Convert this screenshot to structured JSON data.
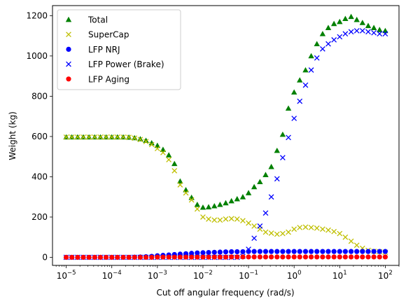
{
  "chart_data": {
    "type": "scatter",
    "title": "",
    "xlabel": "Cut off angular frequency (rad/s)",
    "ylabel": "Weight (kg)",
    "xscale": "log",
    "xlim": [
      5e-06,
      200
    ],
    "ylim": [
      -40,
      1250
    ],
    "x_ticks": [
      {
        "value": 1e-05,
        "base": "10",
        "exp": "−5"
      },
      {
        "value": 0.0001,
        "base": "10",
        "exp": "−4"
      },
      {
        "value": 0.001,
        "base": "10",
        "exp": "−3"
      },
      {
        "value": 0.01,
        "base": "10",
        "exp": "−2"
      },
      {
        "value": 0.1,
        "base": "10",
        "exp": "−1"
      },
      {
        "value": 1,
        "base": "10",
        "exp": "0"
      },
      {
        "value": 10,
        "base": "10",
        "exp": "1"
      },
      {
        "value": 100,
        "base": "10",
        "exp": "2"
      }
    ],
    "y_ticks": [
      0,
      200,
      400,
      600,
      800,
      1000,
      1200
    ],
    "grid": false,
    "legend_position": "top-left",
    "x": [
      1e-05,
      1.33e-05,
      1.78e-05,
      2.37e-05,
      3.16e-05,
      4.22e-05,
      5.62e-05,
      7.5e-05,
      0.0001,
      0.000133,
      0.000178,
      0.000237,
      0.000316,
      0.000422,
      0.000562,
      0.00075,
      0.001,
      0.00133,
      0.00178,
      0.00237,
      0.00316,
      0.00422,
      0.00562,
      0.0075,
      0.01,
      0.0133,
      0.0178,
      0.0237,
      0.0316,
      0.0422,
      0.0562,
      0.075,
      0.1,
      0.133,
      0.178,
      0.237,
      0.316,
      0.422,
      0.562,
      0.75,
      1,
      1.33,
      1.78,
      2.37,
      3.16,
      4.22,
      5.62,
      7.5,
      10,
      13.3,
      17.8,
      23.7,
      31.6,
      42.2,
      56.2,
      75,
      100
    ],
    "series": [
      {
        "name": "Total",
        "color": "#008000",
        "marker": "triangle",
        "values": [
          597,
          597,
          597,
          597,
          597,
          597,
          597,
          597,
          597,
          597,
          597,
          596,
          593,
          588,
          580,
          568,
          555,
          535,
          508,
          465,
          378,
          335,
          297,
          262,
          248,
          250,
          255,
          262,
          270,
          280,
          290,
          300,
          320,
          350,
          375,
          410,
          450,
          530,
          610,
          740,
          820,
          880,
          930,
          1000,
          1060,
          1110,
          1140,
          1160,
          1170,
          1185,
          1195,
          1180,
          1165,
          1150,
          1140,
          1130,
          1125
        ]
      },
      {
        "name": "SuperCap",
        "color": "#bfbf00",
        "marker": "x",
        "values": [
          597,
          597,
          597,
          597,
          597,
          597,
          597,
          597,
          597,
          597,
          597,
          596,
          592,
          585,
          575,
          560,
          540,
          520,
          485,
          430,
          360,
          320,
          285,
          240,
          200,
          190,
          185,
          185,
          190,
          192,
          190,
          182,
          170,
          155,
          140,
          125,
          120,
          115,
          118,
          125,
          140,
          148,
          150,
          148,
          145,
          140,
          135,
          128,
          118,
          100,
          80,
          60,
          45,
          35,
          30,
          28,
          25
        ]
      },
      {
        "name": "LFP NRJ",
        "color": "#0000ff",
        "marker": "circle",
        "values": [
          0,
          0,
          0,
          0,
          0,
          0,
          0,
          0,
          0,
          0,
          0,
          0,
          1,
          2,
          3,
          5,
          8,
          10,
          12,
          14,
          16,
          18,
          20,
          22,
          23,
          24,
          25,
          26,
          27,
          28,
          28,
          28,
          29,
          29,
          29,
          29,
          29,
          29,
          29,
          29,
          29,
          29,
          29,
          29,
          29,
          29,
          29,
          29,
          29,
          29,
          29,
          29,
          29,
          29,
          29,
          29,
          29
        ]
      },
      {
        "name": "LFP Power (Brake)",
        "color": "#0000ff",
        "marker": "x",
        "values": [
          0,
          0,
          0,
          0,
          0,
          0,
          0,
          0,
          0,
          0,
          0,
          0,
          0,
          0,
          0,
          0,
          0,
          0,
          0,
          0,
          0,
          0,
          0,
          0,
          0,
          0,
          0,
          0,
          0,
          0,
          0,
          5,
          40,
          95,
          155,
          220,
          300,
          390,
          495,
          595,
          690,
          775,
          855,
          930,
          990,
          1035,
          1060,
          1080,
          1095,
          1110,
          1120,
          1125,
          1125,
          1120,
          1115,
          1110,
          1110
        ]
      },
      {
        "name": "LFP Aging",
        "color": "#ff0000",
        "marker": "circle",
        "values": [
          0,
          0,
          0,
          0,
          0,
          0,
          0,
          0,
          0,
          0,
          0,
          0,
          0,
          0,
          0,
          0,
          1,
          1,
          1,
          1,
          1,
          1,
          1,
          1,
          1,
          1,
          1,
          1,
          1,
          2,
          2,
          2,
          2,
          2,
          2,
          2,
          2,
          2,
          2,
          2,
          2,
          2,
          2,
          2,
          2,
          2,
          2,
          2,
          2,
          2,
          2,
          2,
          2,
          2,
          2,
          2,
          2
        ]
      }
    ]
  }
}
